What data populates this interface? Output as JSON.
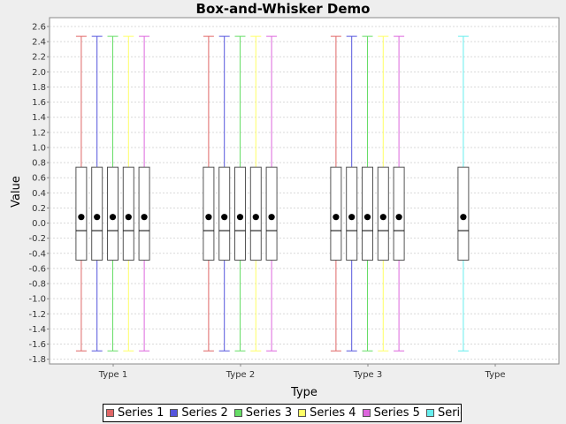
{
  "chart_data": {
    "type": "box",
    "title": "Box-and-Whisker Demo",
    "xlabel": "Type",
    "ylabel": "Value",
    "ylim": [
      -1.9,
      2.65
    ],
    "yticks": [
      -1.8,
      -1.6,
      -1.4,
      -1.2,
      -1.0,
      -0.8,
      -0.6,
      -0.4,
      -0.2,
      0.0,
      0.2,
      0.4,
      0.6,
      0.8,
      1.0,
      1.2,
      1.4,
      1.6,
      1.8,
      2.0,
      2.2,
      2.4,
      2.6
    ],
    "ytick_labels": [
      "-1.8",
      "-1.6",
      "-1.4",
      "-1.2",
      "-1.0",
      "-0.8",
      "-0.6",
      "-0.4",
      "-0.2",
      "0.0",
      "0.2",
      "0.4",
      "0.6",
      "0.8",
      "1.0",
      "1.2",
      "1.4",
      "1.6",
      "1.8",
      "2.0",
      "2.2",
      "2.4",
      "2.6"
    ],
    "grid": true,
    "legend_position": "bottom",
    "categories": [
      "Type 1",
      "Type 2",
      "Type 3",
      "Type"
    ],
    "series": [
      {
        "name": "Series 1",
        "color": "#e06666",
        "present": [
          true,
          true,
          true,
          false
        ]
      },
      {
        "name": "Series 2",
        "color": "#5555dd",
        "present": [
          true,
          true,
          true,
          false
        ]
      },
      {
        "name": "Series 3",
        "color": "#66dd66",
        "present": [
          true,
          true,
          true,
          false
        ]
      },
      {
        "name": "Series 4",
        "color": "#ffff66",
        "present": [
          true,
          true,
          true,
          false
        ]
      },
      {
        "name": "Series 5",
        "color": "#dd66dd",
        "present": [
          true,
          true,
          true,
          false
        ]
      },
      {
        "name": "Series",
        "color": "#66eeee",
        "present": [
          false,
          false,
          false,
          true
        ]
      }
    ],
    "box": {
      "min": -1.69,
      "q1": -0.49,
      "median": -0.1,
      "mean": 0.08,
      "q3": 0.74,
      "max": 2.47
    }
  }
}
